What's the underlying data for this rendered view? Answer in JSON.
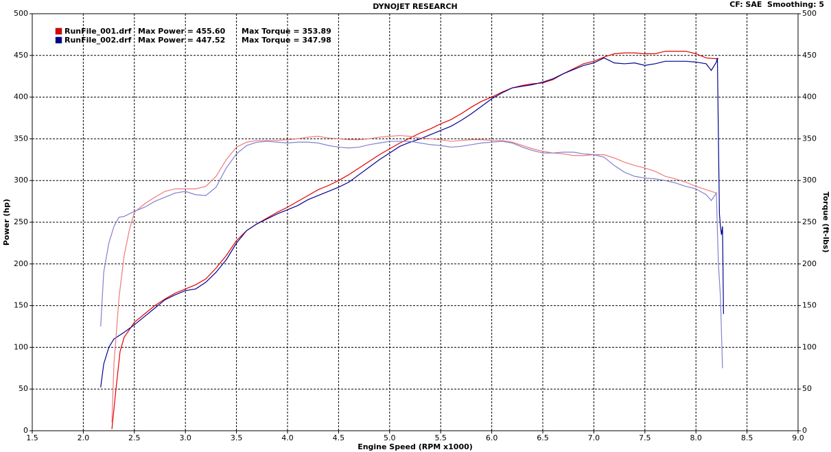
{
  "chart_data": {
    "type": "line",
    "title": "DYNOJET RESEARCH",
    "subtitle": "CF: SAE  Smoothing: 5",
    "xlabel": "Engine Speed (RPM x1000)",
    "ylabel": "Power (hp)",
    "y2label": "Torque (ft-lbs)",
    "xlim": [
      1.5,
      9.0
    ],
    "ylim": [
      0,
      500
    ],
    "y2lim": [
      0,
      500
    ],
    "xticks": [
      {
        "value": 1.5,
        "label": "1.5"
      },
      {
        "value": 2,
        "label": "2.0"
      },
      {
        "value": 2.5,
        "label": "2.5"
      },
      {
        "value": 3,
        "label": "3.0"
      },
      {
        "value": 3.5,
        "label": "3.5"
      },
      {
        "value": 4,
        "label": "4.0"
      },
      {
        "value": 4.5,
        "label": "4.5"
      },
      {
        "value": 5,
        "label": "5.0"
      },
      {
        "value": 5.5,
        "label": "5.5"
      },
      {
        "value": 6,
        "label": "6.0"
      },
      {
        "value": 6.5,
        "label": "6.5"
      },
      {
        "value": 7,
        "label": "7.0"
      },
      {
        "value": 7.5,
        "label": "7.5"
      },
      {
        "value": 8,
        "label": "8.0"
      },
      {
        "value": 8.5,
        "label": "8.5"
      },
      {
        "value": 9,
        "label": "9.0"
      }
    ],
    "yticks": [
      0,
      50,
      100,
      150,
      200,
      250,
      300,
      350,
      400,
      450,
      500
    ],
    "y2ticks": [
      0,
      50,
      100,
      150,
      200,
      250,
      300,
      350,
      400,
      450,
      500
    ],
    "grid": true,
    "legend": "upper left",
    "series": [
      {
        "name": "RunFile_001.drf",
        "max_power": "Max Power = 455.60",
        "max_torque": "Max Torque = 353.89",
        "color": "#e00000",
        "x": [
          2.28,
          2.32,
          2.36,
          2.4,
          2.5,
          2.6,
          2.7,
          2.8,
          2.9,
          3.0,
          3.1,
          3.2,
          3.3,
          3.4,
          3.5,
          3.6,
          3.7,
          3.8,
          3.9,
          4.0,
          4.1,
          4.2,
          4.3,
          4.4,
          4.5,
          4.6,
          4.7,
          4.8,
          4.9,
          5.0,
          5.1,
          5.2,
          5.3,
          5.4,
          5.5,
          5.6,
          5.7,
          5.8,
          5.9,
          6.0,
          6.1,
          6.2,
          6.3,
          6.4,
          6.5,
          6.6,
          6.7,
          6.8,
          6.9,
          7.0,
          7.1,
          7.2,
          7.3,
          7.4,
          7.5,
          7.6,
          7.7,
          7.8,
          7.9,
          8.0,
          8.1,
          8.2,
          8.22
        ],
        "values": [
          2,
          50,
          95,
          112,
          130,
          140,
          150,
          158,
          165,
          170,
          175,
          182,
          195,
          210,
          228,
          240,
          248,
          255,
          262,
          268,
          275,
          282,
          289,
          294,
          300,
          307,
          315,
          323,
          331,
          338,
          345,
          351,
          357,
          362,
          368,
          373,
          380,
          388,
          395,
          400,
          406,
          411,
          414,
          416,
          417,
          421,
          428,
          434,
          440,
          443,
          448,
          452,
          453,
          453,
          452,
          452,
          455,
          455,
          455,
          452,
          447,
          446,
          446
        ]
      },
      {
        "name": "RunFile_002.drf",
        "max_power": "Max Power = 447.52",
        "max_torque": "Max Torque = 347.98",
        "color": "#000090",
        "x": [
          2.17,
          2.2,
          2.25,
          2.3,
          2.4,
          2.5,
          2.6,
          2.7,
          2.8,
          2.9,
          3.0,
          3.1,
          3.2,
          3.3,
          3.4,
          3.5,
          3.6,
          3.7,
          3.8,
          3.9,
          4.0,
          4.1,
          4.2,
          4.3,
          4.4,
          4.5,
          4.6,
          4.7,
          4.8,
          4.9,
          5.0,
          5.1,
          5.2,
          5.3,
          5.4,
          5.5,
          5.6,
          5.7,
          5.8,
          5.9,
          6.0,
          6.1,
          6.2,
          6.3,
          6.4,
          6.5,
          6.6,
          6.7,
          6.8,
          6.9,
          7.0,
          7.1,
          7.2,
          7.3,
          7.4,
          7.5,
          7.6,
          7.7,
          7.8,
          7.9,
          8.0,
          8.1,
          8.15,
          8.2,
          8.21,
          8.22,
          8.23,
          8.24,
          8.25,
          8.26,
          8.27
        ],
        "values": [
          52,
          80,
          100,
          110,
          118,
          127,
          137,
          147,
          157,
          163,
          168,
          170,
          178,
          190,
          205,
          225,
          240,
          248,
          254,
          260,
          265,
          270,
          277,
          282,
          287,
          292,
          298,
          307,
          316,
          325,
          333,
          341,
          346,
          350,
          355,
          360,
          365,
          372,
          380,
          389,
          398,
          405,
          411,
          413,
          415,
          418,
          422,
          428,
          433,
          438,
          441,
          447,
          441,
          440,
          441,
          438,
          440,
          443,
          443,
          443,
          442,
          440,
          432,
          442,
          447,
          350,
          260,
          245,
          235,
          245,
          140
        ]
      },
      {
        "axis": "y2",
        "color": "#f07878",
        "x": [
          2.28,
          2.3,
          2.35,
          2.4,
          2.45,
          2.5,
          2.6,
          2.7,
          2.8,
          2.9,
          3.0,
          3.1,
          3.2,
          3.3,
          3.4,
          3.5,
          3.6,
          3.7,
          3.8,
          3.9,
          4.0,
          4.1,
          4.2,
          4.3,
          4.4,
          4.5,
          4.6,
          4.7,
          4.8,
          4.9,
          5.0,
          5.1,
          5.2,
          5.3,
          5.4,
          5.5,
          5.6,
          5.7,
          5.8,
          5.9,
          6.0,
          6.1,
          6.2,
          6.3,
          6.4,
          6.5,
          6.6,
          6.7,
          6.8,
          6.9,
          7.0,
          7.1,
          7.2,
          7.3,
          7.4,
          7.5,
          7.6,
          7.7,
          7.8,
          7.9,
          8.0,
          8.1,
          8.2
        ],
        "values": [
          10,
          80,
          160,
          210,
          240,
          262,
          272,
          280,
          287,
          290,
          290,
          290,
          293,
          305,
          325,
          340,
          346,
          348,
          348,
          348,
          349,
          350,
          352,
          353,
          351,
          350,
          349,
          349,
          350,
          352,
          353,
          354,
          353,
          351,
          350,
          349,
          347,
          348,
          349,
          349,
          348,
          348,
          346,
          342,
          338,
          335,
          333,
          332,
          330,
          330,
          331,
          331,
          327,
          322,
          318,
          315,
          311,
          305,
          302,
          298,
          293,
          289,
          285
        ]
      },
      {
        "axis": "y2",
        "color": "#8080d0",
        "x": [
          2.17,
          2.2,
          2.25,
          2.3,
          2.35,
          2.4,
          2.5,
          2.6,
          2.7,
          2.8,
          2.9,
          3.0,
          3.1,
          3.2,
          3.3,
          3.4,
          3.5,
          3.6,
          3.7,
          3.8,
          3.9,
          4.0,
          4.1,
          4.2,
          4.3,
          4.4,
          4.5,
          4.6,
          4.7,
          4.8,
          4.9,
          5.0,
          5.1,
          5.2,
          5.3,
          5.4,
          5.5,
          5.6,
          5.7,
          5.8,
          5.9,
          6.0,
          6.1,
          6.2,
          6.3,
          6.4,
          6.5,
          6.6,
          6.7,
          6.8,
          6.9,
          7.0,
          7.1,
          7.2,
          7.3,
          7.4,
          7.5,
          7.6,
          7.7,
          7.8,
          7.9,
          8.0,
          8.1,
          8.15,
          8.2,
          8.21,
          8.22,
          8.24,
          8.26
        ],
        "values": [
          125,
          190,
          225,
          245,
          256,
          257,
          263,
          268,
          275,
          280,
          285,
          287,
          283,
          282,
          292,
          315,
          332,
          342,
          346,
          347,
          346,
          345,
          346,
          346,
          345,
          342,
          340,
          339,
          340,
          343,
          345,
          347,
          347,
          347,
          345,
          343,
          342,
          340,
          341,
          343,
          345,
          346,
          347,
          345,
          340,
          336,
          333,
          333,
          334,
          334,
          332,
          331,
          328,
          318,
          310,
          305,
          303,
          302,
          300,
          297,
          293,
          290,
          283,
          276,
          285,
          240,
          200,
          160,
          75
        ]
      }
    ]
  }
}
